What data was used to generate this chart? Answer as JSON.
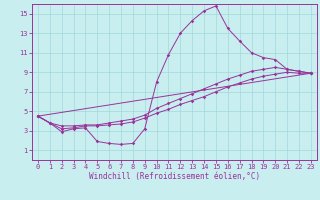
{
  "xlabel": "Windchill (Refroidissement éolien,°C)",
  "xlim": [
    -0.5,
    23.5
  ],
  "ylim": [
    0,
    16
  ],
  "xticks": [
    0,
    1,
    2,
    3,
    4,
    5,
    6,
    7,
    8,
    9,
    10,
    11,
    12,
    13,
    14,
    15,
    16,
    17,
    18,
    19,
    20,
    21,
    22,
    23
  ],
  "yticks": [
    1,
    3,
    5,
    7,
    9,
    11,
    13,
    15
  ],
  "bg_color": "#c8eef0",
  "line_color": "#993399",
  "grid_color": "#a0d8dc",
  "line1_y": [
    4.5,
    3.8,
    2.9,
    3.2,
    3.3,
    1.9,
    1.7,
    1.6,
    1.7,
    3.2,
    8.0,
    10.8,
    13.0,
    14.3,
    15.3,
    15.8,
    13.5,
    12.2,
    11.0,
    10.5,
    10.3,
    9.3,
    9.1,
    8.9
  ],
  "line2_y": [
    4.5,
    3.8,
    3.5,
    3.5,
    3.6,
    3.6,
    3.8,
    4.0,
    4.2,
    4.6,
    5.3,
    5.8,
    6.3,
    6.8,
    7.3,
    7.8,
    8.3,
    8.7,
    9.1,
    9.3,
    9.5,
    9.3,
    9.1,
    8.9
  ],
  "line3_y": [
    4.5,
    3.8,
    3.2,
    3.3,
    3.5,
    3.5,
    3.6,
    3.7,
    3.9,
    4.3,
    4.8,
    5.2,
    5.7,
    6.1,
    6.5,
    7.0,
    7.5,
    7.9,
    8.3,
    8.6,
    8.8,
    9.0,
    8.9,
    8.9
  ],
  "line4_y": [
    4.5,
    8.9
  ]
}
